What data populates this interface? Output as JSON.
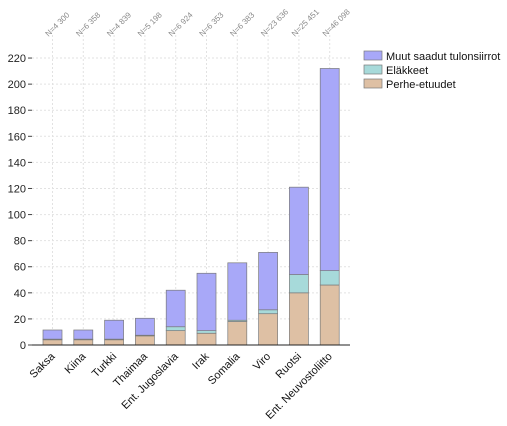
{
  "chart_data": {
    "type": "bar",
    "stacked": true,
    "categories": [
      "Saksa",
      "Kiina",
      "Turkki",
      "Thaimaa",
      "Ent. Jugoslavia",
      "Irak",
      "Somalia",
      "Viro",
      "Ruotsi",
      "Ent. Neuvostoliitto"
    ],
    "n_labels": [
      "N=4 300",
      "N=6 358",
      "N=4 839",
      "N=5 198",
      "N=6 924",
      "N=6 353",
      "N=6 383",
      "N=23 636",
      "N=25 451",
      "N=46 098"
    ],
    "series": [
      {
        "name": "Perhe-etuudet",
        "color": "#dec0a4",
        "values": [
          4,
          4,
          4,
          7,
          11,
          9,
          18,
          24,
          40,
          46
        ]
      },
      {
        "name": "Eläkkeet",
        "color": "#a7dada",
        "values": [
          0.5,
          0.5,
          0.5,
          0.5,
          3,
          2,
          1,
          3,
          14,
          11
        ]
      },
      {
        "name": "Muut saadut tulonsiirrot",
        "color": "#a8a8f8",
        "values": [
          7,
          7,
          14.5,
          13,
          28,
          44,
          44,
          44,
          67,
          155
        ]
      }
    ],
    "legend_order": [
      "Muut saadut tulonsiirrot",
      "Eläkkeet",
      "Perhe-etuudet"
    ],
    "yticks": [
      0,
      20,
      40,
      60,
      80,
      100,
      120,
      140,
      160,
      180,
      200,
      220
    ],
    "ylim": [
      0,
      230
    ],
    "grid": true,
    "legend_position": "right",
    "title": "",
    "xlabel": "",
    "ylabel": ""
  }
}
